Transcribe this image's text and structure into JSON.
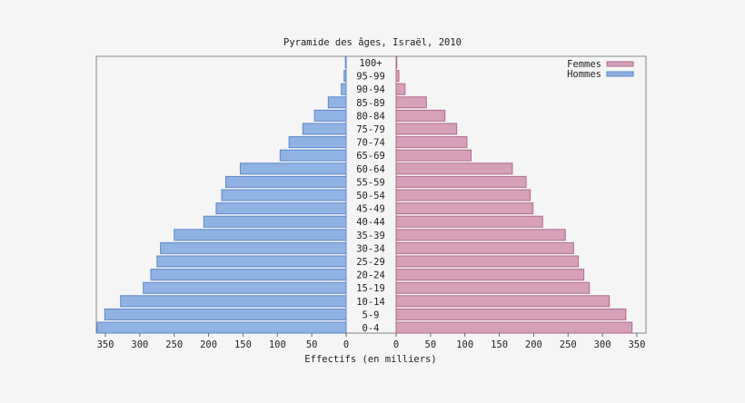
{
  "chart_data": {
    "type": "bar",
    "orientation": "horizontal-pyramid",
    "title": "Pyramide des âges, Israël, 2010",
    "xlabel": "Effectifs (en milliers)",
    "ylabel": "",
    "xlim": [
      0,
      362
    ],
    "xticks": [
      0,
      50,
      100,
      150,
      200,
      250,
      300,
      350
    ],
    "grid": false,
    "legend_position": "top-right",
    "categories": [
      "100+",
      "95-99",
      "90-94",
      "85-89",
      "80-84",
      "75-79",
      "70-74",
      "65-69",
      "60-64",
      "55-59",
      "50-54",
      "45-49",
      "40-44",
      "35-39",
      "30-34",
      "25-29",
      "20-24",
      "15-19",
      "10-14",
      "5-9",
      "0-4"
    ],
    "series": [
      {
        "name": "Femmes",
        "side": "right",
        "color": "#d5a0b8",
        "edge": "#b06a8c",
        "values": [
          0.5,
          4,
          13,
          44,
          71,
          88,
          103,
          109,
          169,
          189,
          195,
          199,
          213,
          246,
          258,
          265,
          273,
          281,
          310,
          334,
          343
        ]
      },
      {
        "name": "Hommes",
        "side": "left",
        "color": "#90b3e4",
        "edge": "#5b87c8",
        "values": [
          0.5,
          3,
          7,
          26,
          46,
          63,
          83,
          96,
          154,
          175,
          181,
          189,
          207,
          250,
          270,
          275,
          284,
          295,
          328,
          351,
          362
        ]
      }
    ]
  }
}
